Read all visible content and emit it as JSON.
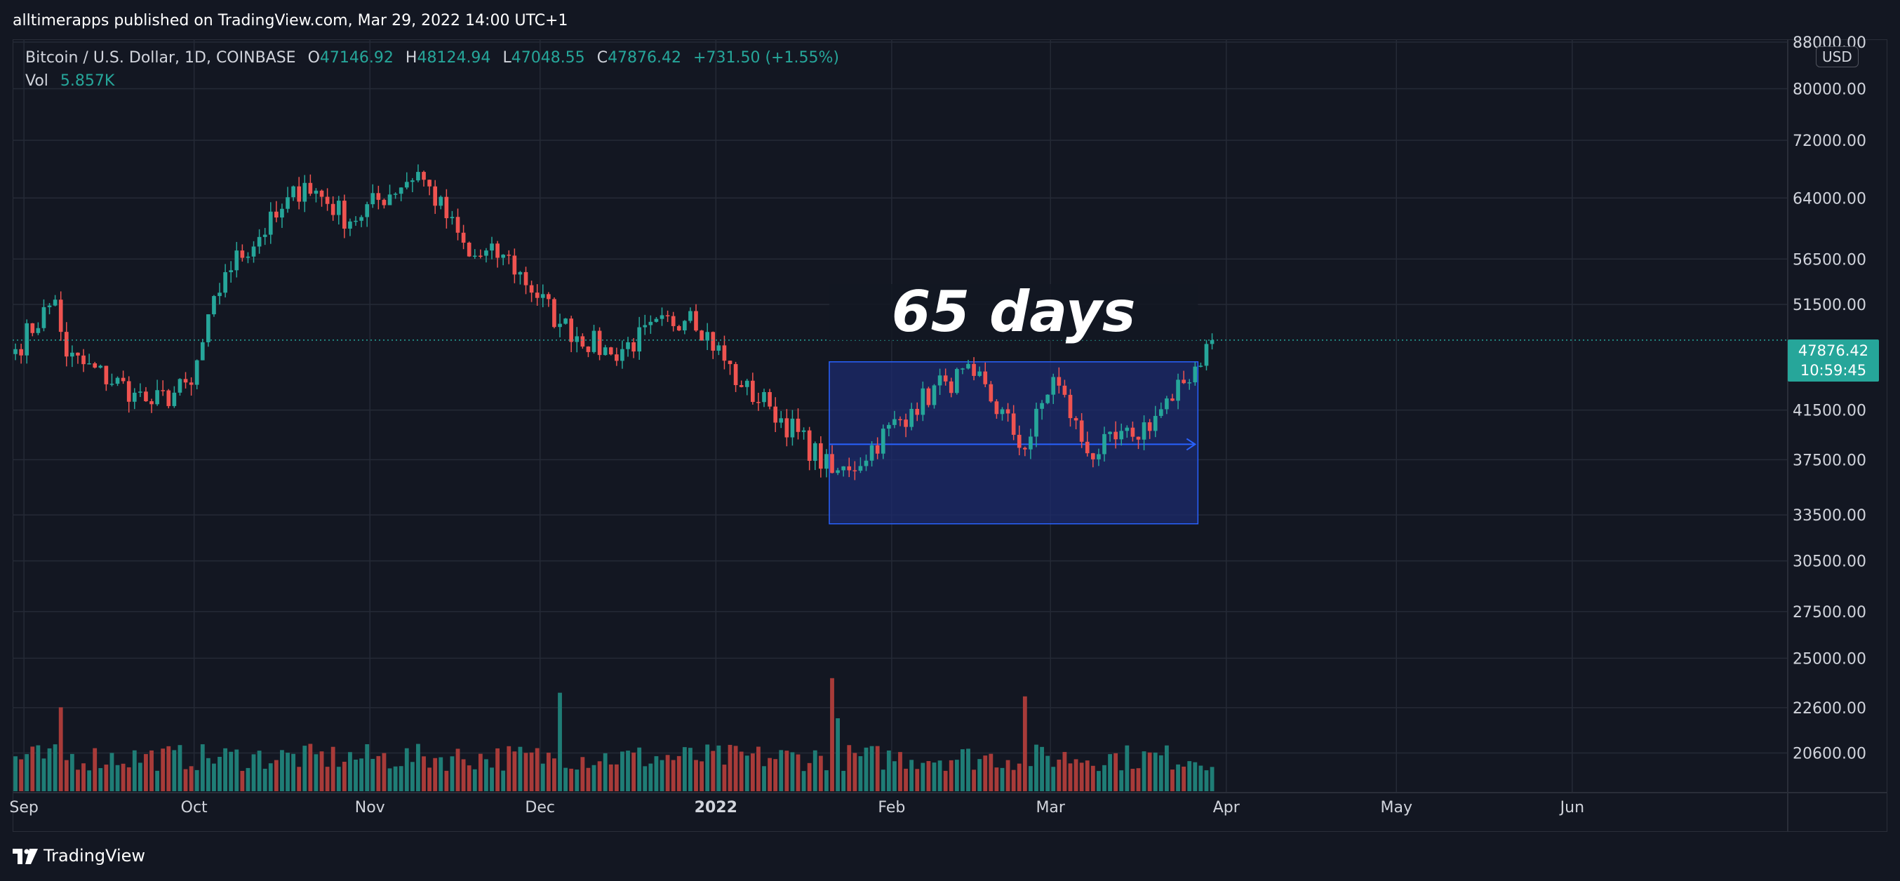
{
  "header": {
    "publisher_line": "alltimerapps published on TradingView.com, Mar 29, 2022 14:00 UTC+1"
  },
  "legend": {
    "symbol": "Bitcoin / U.S. Dollar, 1D, COINBASE",
    "open_label": "O",
    "open": "47146.92",
    "high_label": "H",
    "high": "48124.94",
    "low_label": "L",
    "low": "47048.55",
    "close_label": "C",
    "close": "47876.42",
    "change": "+731.50 (+1.55%)",
    "vol_label": "Vol",
    "vol": "5.857K"
  },
  "currency_badge": "USD",
  "last_price": {
    "price": "47876.42",
    "countdown": "10:59:45"
  },
  "annotation": {
    "text": "65 days"
  },
  "footer": {
    "brand": "TradingView"
  },
  "colors": {
    "background": "#131722",
    "up": "#26a69a",
    "down": "#ef5350",
    "up_volume": "#1f7d76",
    "down_volume": "#a83b39",
    "range_fill": "#1c2b6e",
    "range_border": "#2962ff",
    "grid": "#252a36"
  },
  "chart_data": {
    "type": "candlestick",
    "symbol": "BTCUSD",
    "exchange": "COINBASE",
    "interval": "1D",
    "x_range": [
      "2021-08-30",
      "2022-07-09"
    ],
    "y_scale": "log",
    "ylim": [
      19000,
      88500
    ],
    "y_ticks": [
      88000,
      80000,
      72000,
      64000,
      56500,
      51500,
      47876.42,
      41500,
      37500,
      33500,
      30500,
      27500,
      25000,
      22600,
      20600
    ],
    "y_tick_labels": [
      "88000.00",
      "80000.00",
      "72000.00",
      "64000.00",
      "56500.00",
      "51500.00",
      "47876.42",
      "41500.00",
      "37500.00",
      "33500.00",
      "30500.00",
      "27500.00",
      "25000.00",
      "22600.00",
      "20600.00"
    ],
    "x_ticks": [
      {
        "label": "Sep",
        "date": "2021-09-01"
      },
      {
        "label": "Oct",
        "date": "2021-10-01"
      },
      {
        "label": "Nov",
        "date": "2021-11-01"
      },
      {
        "label": "Dec",
        "date": "2021-12-01"
      },
      {
        "label": "2022",
        "date": "2022-01-01"
      },
      {
        "label": "Feb",
        "date": "2022-02-01"
      },
      {
        "label": "Mar",
        "date": "2022-03-01"
      },
      {
        "label": "Apr",
        "date": "2022-04-01"
      },
      {
        "label": "May",
        "date": "2022-05-01"
      },
      {
        "label": "Jun",
        "date": "2022-06-01"
      }
    ],
    "last_price": 47876.42,
    "range_box": {
      "start": "2022-01-21",
      "end": "2022-03-27",
      "low": 32900,
      "high": 45800,
      "mid_line": 38700,
      "label": "65 days"
    },
    "series": [
      {
        "name": "BTCUSD",
        "type": "candlestick",
        "anchors": [
          {
            "date": "2021-08-30",
            "close": 47000
          },
          {
            "date": "2021-09-06",
            "close": 52000
          },
          {
            "date": "2021-09-08",
            "close": 46300
          },
          {
            "date": "2021-09-20",
            "close": 43000
          },
          {
            "date": "2021-09-23",
            "close": 42000
          },
          {
            "date": "2021-09-30",
            "close": 43700
          },
          {
            "date": "2021-10-06",
            "close": 55000
          },
          {
            "date": "2021-10-15",
            "close": 61500
          },
          {
            "date": "2021-10-20",
            "close": 66000
          },
          {
            "date": "2021-10-28",
            "close": 61000
          },
          {
            "date": "2021-11-09",
            "close": 67500
          },
          {
            "date": "2021-11-18",
            "close": 56800
          },
          {
            "date": "2021-11-24",
            "close": 57000
          },
          {
            "date": "2021-12-04",
            "close": 49500
          },
          {
            "date": "2021-12-13",
            "close": 46500
          },
          {
            "date": "2021-12-27",
            "close": 50800
          },
          {
            "date": "2022-01-05",
            "close": 43500
          },
          {
            "date": "2022-01-10",
            "close": 41800
          },
          {
            "date": "2022-01-21",
            "close": 36500
          },
          {
            "date": "2022-01-24",
            "close": 36700
          },
          {
            "date": "2022-02-04",
            "close": 41600
          },
          {
            "date": "2022-02-10",
            "close": 44000
          },
          {
            "date": "2022-02-15",
            "close": 44500
          },
          {
            "date": "2022-02-24",
            "close": 38300
          },
          {
            "date": "2022-03-01",
            "close": 44400
          },
          {
            "date": "2022-03-07",
            "close": 38000
          },
          {
            "date": "2022-03-15",
            "close": 39300
          },
          {
            "date": "2022-03-22",
            "close": 42300
          },
          {
            "date": "2022-03-29",
            "close": 47876.42
          }
        ]
      },
      {
        "name": "Vol",
        "type": "volume",
        "last_value": "5.857K",
        "spikes": [
          {
            "date": "2021-09-07",
            "scale": 2.3
          },
          {
            "date": "2021-12-04",
            "scale": 2.7
          },
          {
            "date": "2022-01-21",
            "scale": 3.1
          },
          {
            "date": "2022-01-22",
            "scale": 2.0
          },
          {
            "date": "2022-02-24",
            "scale": 2.6
          }
        ]
      }
    ]
  }
}
